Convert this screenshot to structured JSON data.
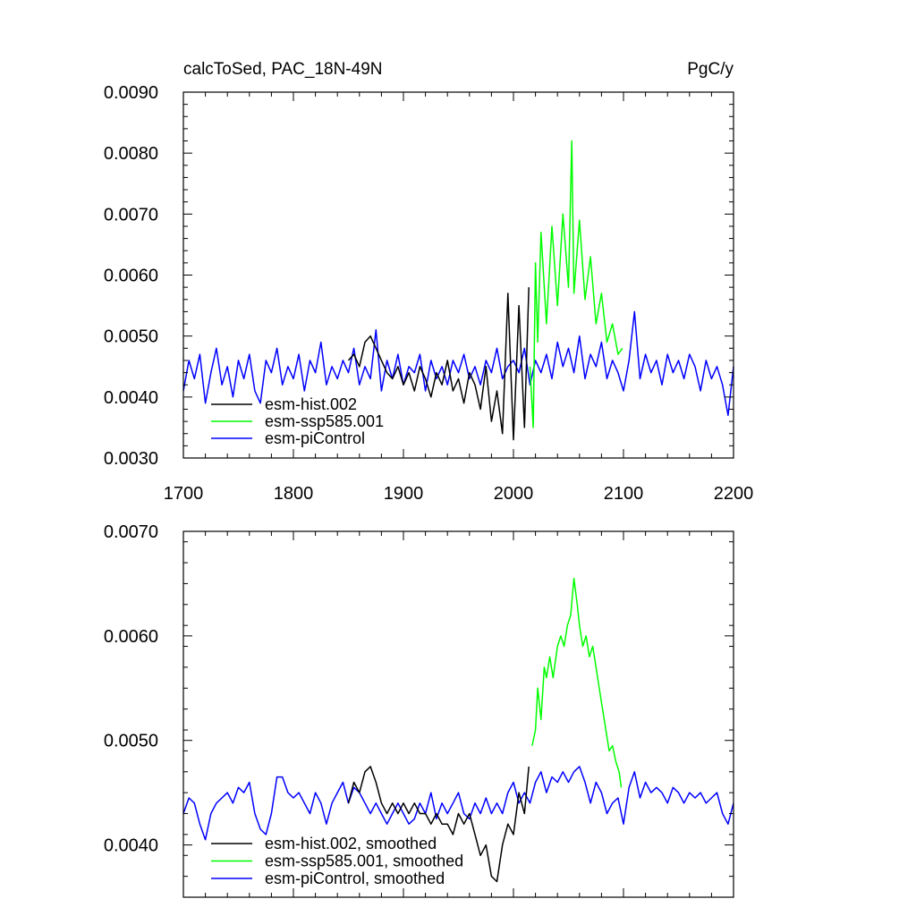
{
  "chart_data": [
    {
      "type": "line",
      "title_left": "calcToSed, PAC_18N-49N",
      "title_right": "PgC/y",
      "xlim": [
        1700,
        2200
      ],
      "ylim": [
        0.003,
        0.009
      ],
      "x_ticks": [
        1700,
        1800,
        1900,
        2000,
        2100,
        2200
      ],
      "x_tick_labels": [
        "1700",
        "1800",
        "1900",
        "2000",
        "2100",
        "2200"
      ],
      "y_ticks": [
        0.003,
        0.004,
        0.005,
        0.006,
        0.007,
        0.008,
        0.009
      ],
      "y_tick_labels": [
        "0.0030",
        "0.0040",
        "0.0050",
        "0.0060",
        "0.0070",
        "0.0080",
        "0.0090"
      ],
      "legend_position": "bottom-left",
      "series": [
        {
          "name": "esm-hist.002",
          "color": "#000000",
          "x": [
            1850,
            1855,
            1860,
            1865,
            1870,
            1875,
            1880,
            1885,
            1890,
            1895,
            1900,
            1905,
            1910,
            1915,
            1920,
            1925,
            1930,
            1935,
            1940,
            1945,
            1950,
            1955,
            1960,
            1965,
            1970,
            1975,
            1980,
            1985,
            1990,
            1995,
            2000,
            2005,
            2010,
            2014
          ],
          "y": [
            0.0046,
            0.0047,
            0.0045,
            0.0049,
            0.005,
            0.0048,
            0.0046,
            0.0044,
            0.0043,
            0.0045,
            0.0042,
            0.0044,
            0.0041,
            0.0045,
            0.0043,
            0.004,
            0.0044,
            0.0042,
            0.0046,
            0.0041,
            0.0043,
            0.0039,
            0.0044,
            0.0042,
            0.0038,
            0.0045,
            0.0036,
            0.0041,
            0.0034,
            0.0057,
            0.0033,
            0.0055,
            0.0035,
            0.0058
          ]
        },
        {
          "name": "esm-ssp585.001",
          "color": "#00ff00",
          "x": [
            2015,
            2018,
            2020,
            2022,
            2025,
            2030,
            2035,
            2040,
            2045,
            2050,
            2053,
            2055,
            2060,
            2065,
            2070,
            2075,
            2080,
            2085,
            2090,
            2095,
            2099
          ],
          "y": [
            0.0045,
            0.0035,
            0.0062,
            0.0049,
            0.0067,
            0.0052,
            0.0068,
            0.0055,
            0.007,
            0.0058,
            0.0082,
            0.0057,
            0.0069,
            0.0056,
            0.0063,
            0.0052,
            0.0057,
            0.0049,
            0.0052,
            0.0047,
            0.0048
          ]
        },
        {
          "name": "esm-piControl",
          "color": "#0000ff",
          "x": [
            1700,
            1705,
            1710,
            1715,
            1720,
            1725,
            1730,
            1735,
            1740,
            1745,
            1750,
            1755,
            1760,
            1765,
            1770,
            1775,
            1780,
            1785,
            1790,
            1795,
            1800,
            1805,
            1810,
            1815,
            1820,
            1825,
            1830,
            1835,
            1840,
            1845,
            1850,
            1855,
            1860,
            1865,
            1870,
            1875,
            1880,
            1885,
            1890,
            1895,
            1900,
            1905,
            1910,
            1915,
            1920,
            1925,
            1930,
            1935,
            1940,
            1945,
            1950,
            1955,
            1960,
            1965,
            1970,
            1975,
            1980,
            1985,
            1990,
            1995,
            2000,
            2005,
            2010,
            2015,
            2020,
            2025,
            2030,
            2035,
            2040,
            2045,
            2050,
            2055,
            2060,
            2065,
            2070,
            2075,
            2080,
            2085,
            2090,
            2095,
            2100,
            2105,
            2110,
            2115,
            2120,
            2125,
            2130,
            2135,
            2140,
            2145,
            2150,
            2155,
            2160,
            2165,
            2170,
            2175,
            2180,
            2185,
            2190,
            2195,
            2200
          ],
          "y": [
            0.0041,
            0.0046,
            0.0043,
            0.0047,
            0.0039,
            0.0044,
            0.0048,
            0.0042,
            0.0045,
            0.004,
            0.0046,
            0.0043,
            0.0047,
            0.0041,
            0.0039,
            0.0046,
            0.0044,
            0.0048,
            0.0042,
            0.0045,
            0.0043,
            0.0047,
            0.0041,
            0.0046,
            0.0044,
            0.0049,
            0.0042,
            0.0045,
            0.0043,
            0.0046,
            0.0044,
            0.0048,
            0.0042,
            0.0045,
            0.0043,
            0.0051,
            0.0041,
            0.0046,
            0.0043,
            0.0047,
            0.0042,
            0.0045,
            0.0044,
            0.0047,
            0.0041,
            0.0046,
            0.0043,
            0.0045,
            0.0042,
            0.0046,
            0.0044,
            0.0047,
            0.0043,
            0.0045,
            0.0042,
            0.0046,
            0.0044,
            0.0048,
            0.0043,
            0.0045,
            0.0046,
            0.0044,
            0.0048,
            0.0042,
            0.0046,
            0.0044,
            0.0047,
            0.0043,
            0.0049,
            0.0045,
            0.0048,
            0.0044,
            0.005,
            0.0043,
            0.0047,
            0.0045,
            0.0049,
            0.0043,
            0.0046,
            0.0044,
            0.0041,
            0.0046,
            0.0054,
            0.0043,
            0.0047,
            0.0044,
            0.0046,
            0.0042,
            0.0047,
            0.0044,
            0.0046,
            0.0043,
            0.0047,
            0.0045,
            0.0041,
            0.0046,
            0.0043,
            0.0045,
            0.0042,
            0.0037,
            0.0045
          ]
        }
      ]
    },
    {
      "type": "line",
      "xlim": [
        1700,
        2200
      ],
      "ylim": [
        0.0035,
        0.007
      ],
      "x_ticks": [
        1700,
        1800,
        1900,
        2000,
        2100,
        2200
      ],
      "y_ticks": [
        0.004,
        0.005,
        0.006,
        0.007
      ],
      "y_tick_labels": [
        "0.0040",
        "0.0050",
        "0.0060",
        "0.0070"
      ],
      "legend_position": "bottom-left",
      "series": [
        {
          "name": "esm-hist.002, smoothed",
          "color": "#000000",
          "x": [
            1850,
            1855,
            1860,
            1865,
            1870,
            1875,
            1880,
            1885,
            1890,
            1895,
            1900,
            1905,
            1910,
            1915,
            1920,
            1925,
            1930,
            1935,
            1940,
            1945,
            1950,
            1955,
            1960,
            1965,
            1970,
            1975,
            1980,
            1985,
            1990,
            1995,
            2000,
            2005,
            2010,
            2014
          ],
          "y": [
            0.0044,
            0.0046,
            0.0045,
            0.0047,
            0.00475,
            0.0046,
            0.0044,
            0.0043,
            0.0044,
            0.0043,
            0.0044,
            0.0043,
            0.0044,
            0.0043,
            0.0043,
            0.0042,
            0.0043,
            0.0042,
            0.0042,
            0.0041,
            0.0043,
            0.0042,
            0.0043,
            0.0041,
            0.0039,
            0.004,
            0.0037,
            0.00365,
            0.004,
            0.0042,
            0.0041,
            0.0045,
            0.0043,
            0.00475
          ]
        },
        {
          "name": "esm-ssp585.001, smoothed",
          "color": "#00ff00",
          "x": [
            2017,
            2020,
            2022,
            2025,
            2028,
            2030,
            2033,
            2036,
            2040,
            2043,
            2046,
            2049,
            2052,
            2055,
            2058,
            2060,
            2063,
            2066,
            2069,
            2072,
            2075,
            2078,
            2081,
            2084,
            2087,
            2090,
            2093,
            2096,
            2098
          ],
          "y": [
            0.00495,
            0.0051,
            0.0055,
            0.0052,
            0.0057,
            0.0056,
            0.0058,
            0.0056,
            0.0059,
            0.006,
            0.0059,
            0.0061,
            0.0062,
            0.00655,
            0.0063,
            0.0061,
            0.0059,
            0.006,
            0.0058,
            0.0059,
            0.0057,
            0.0055,
            0.0053,
            0.0051,
            0.0049,
            0.00495,
            0.0048,
            0.0047,
            0.00455
          ]
        },
        {
          "name": "esm-piControl, smoothed",
          "color": "#0000ff",
          "x": [
            1700,
            1705,
            1710,
            1715,
            1720,
            1725,
            1730,
            1735,
            1740,
            1745,
            1750,
            1755,
            1760,
            1765,
            1770,
            1775,
            1780,
            1785,
            1790,
            1795,
            1800,
            1805,
            1810,
            1815,
            1820,
            1825,
            1830,
            1835,
            1840,
            1845,
            1850,
            1855,
            1860,
            1865,
            1870,
            1875,
            1880,
            1885,
            1890,
            1895,
            1900,
            1905,
            1910,
            1915,
            1920,
            1925,
            1930,
            1935,
            1940,
            1945,
            1950,
            1955,
            1960,
            1965,
            1970,
            1975,
            1980,
            1985,
            1990,
            1995,
            2000,
            2005,
            2010,
            2015,
            2020,
            2025,
            2030,
            2035,
            2040,
            2045,
            2050,
            2055,
            2060,
            2065,
            2070,
            2075,
            2080,
            2085,
            2090,
            2095,
            2100,
            2105,
            2110,
            2115,
            2120,
            2125,
            2130,
            2135,
            2140,
            2145,
            2150,
            2155,
            2160,
            2165,
            2170,
            2175,
            2180,
            2185,
            2190,
            2195,
            2200
          ],
          "y": [
            0.0043,
            0.00445,
            0.0044,
            0.0042,
            0.00405,
            0.0043,
            0.0044,
            0.00445,
            0.0045,
            0.0044,
            0.00455,
            0.0045,
            0.0046,
            0.0043,
            0.00415,
            0.0041,
            0.0043,
            0.00465,
            0.00465,
            0.0045,
            0.00445,
            0.0045,
            0.0044,
            0.0043,
            0.0045,
            0.0044,
            0.0042,
            0.0044,
            0.0045,
            0.0046,
            0.0044,
            0.00455,
            0.0045,
            0.0044,
            0.0043,
            0.0044,
            0.0043,
            0.0042,
            0.0043,
            0.0044,
            0.0043,
            0.0042,
            0.00425,
            0.0044,
            0.0043,
            0.0045,
            0.00425,
            0.0044,
            0.0043,
            0.0044,
            0.0045,
            0.0043,
            0.00425,
            0.0044,
            0.0043,
            0.00445,
            0.0043,
            0.0044,
            0.0043,
            0.0045,
            0.0046,
            0.0044,
            0.0045,
            0.0044,
            0.0046,
            0.0047,
            0.0045,
            0.00465,
            0.0046,
            0.0047,
            0.0046,
            0.0047,
            0.00475,
            0.0046,
            0.0044,
            0.0046,
            0.0045,
            0.0043,
            0.0044,
            0.00445,
            0.0042,
            0.00455,
            0.0047,
            0.00445,
            0.0046,
            0.0045,
            0.00455,
            0.0045,
            0.0044,
            0.00455,
            0.0045,
            0.0044,
            0.0045,
            0.00445,
            0.0045,
            0.0044,
            0.00445,
            0.0045,
            0.0043,
            0.0042,
            0.0044
          ]
        }
      ]
    }
  ]
}
